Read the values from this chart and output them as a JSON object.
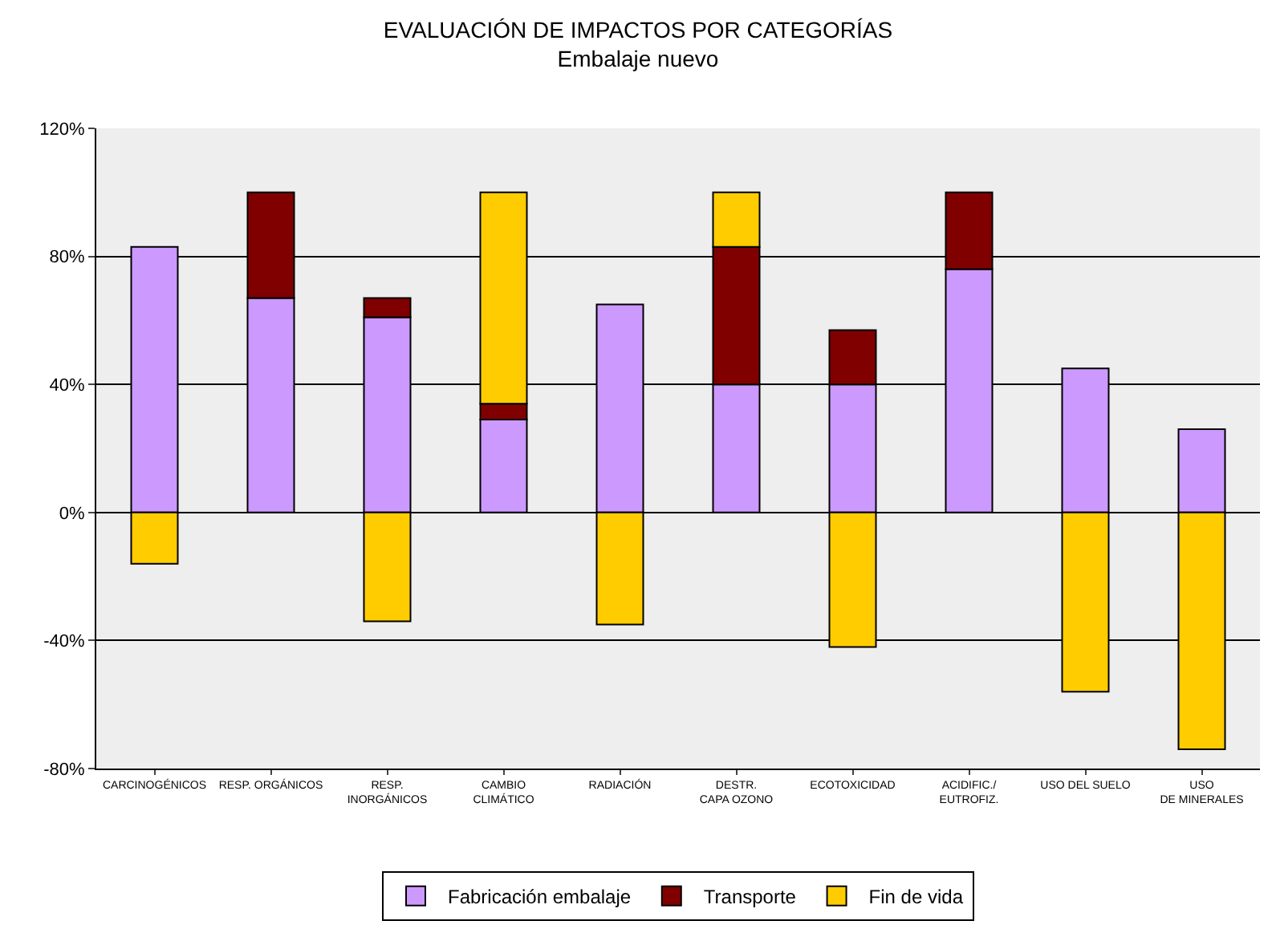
{
  "chart_data": {
    "type": "bar",
    "stacked": true,
    "title": "EVALUACIÓN DE IMPACTOS POR CATEGORÍAS",
    "subtitle": "Embalaje nuevo",
    "categories": [
      "CARCINOGÉNICOS",
      "RESP. ORGÁNICOS",
      "RESP. INORGÁNICOS",
      "CAMBIO CLIMÁTICO",
      "RADIACIÓN",
      "DESTR. CAPA OZONO",
      "ECOTOXICIDAD",
      "ACIDIFIC./ EUTROFIZ.",
      "USO DEL SUELO",
      "USO DE MINERALES"
    ],
    "series": [
      {
        "name": "Fabricación embalaje",
        "color": "#cc99ff",
        "values": [
          83,
          67,
          61,
          29,
          65,
          40,
          40,
          76,
          45,
          26
        ]
      },
      {
        "name": "Transporte",
        "color": "#800000",
        "values": [
          null,
          33,
          6,
          5,
          null,
          43,
          17,
          24,
          null,
          null
        ]
      },
      {
        "name": "Fin de vida",
        "color": "#ffcc00",
        "values": [
          -16,
          null,
          -34,
          66,
          -35,
          17,
          -42,
          null,
          -56,
          -74
        ]
      }
    ],
    "ylim": [
      -80,
      120
    ],
    "yticks": [
      {
        "value": -80,
        "label": "-80%"
      },
      {
        "value": -40,
        "label": "-40%"
      },
      {
        "value": 0,
        "label": "0%"
      },
      {
        "value": 40,
        "label": "40%"
      },
      {
        "value": 80,
        "label": "80%"
      },
      {
        "value": 120,
        "label": "120%"
      }
    ],
    "grid": "y",
    "legend": "bottom"
  }
}
